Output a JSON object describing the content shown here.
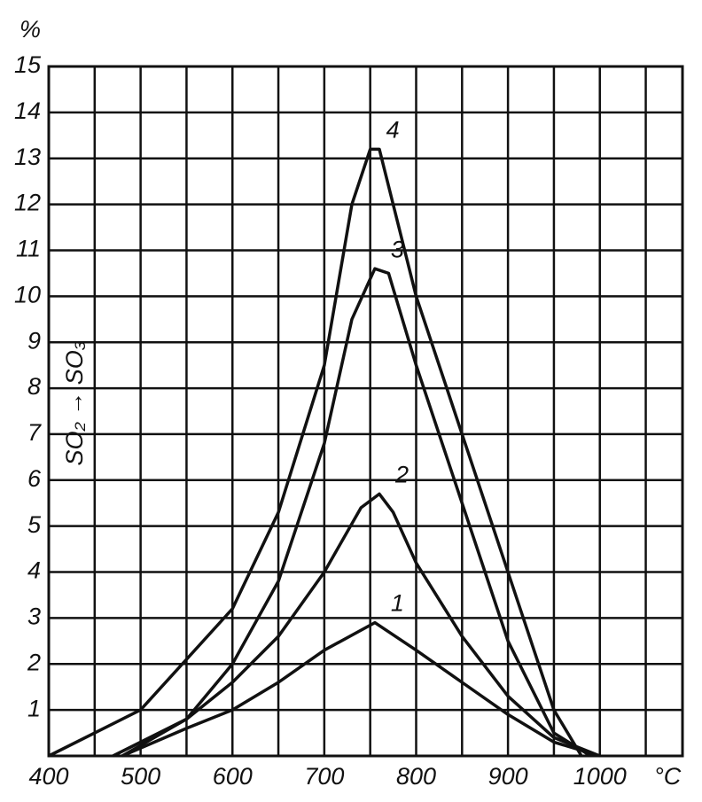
{
  "chart_data": {
    "type": "line",
    "y_unit": "%",
    "x_unit": "°C",
    "ylabel": "SO₂ → SO₃",
    "xlim": [
      400,
      1090
    ],
    "ylim": [
      0,
      15
    ],
    "xticks": [
      400,
      500,
      600,
      700,
      800,
      900,
      1000
    ],
    "xminor": [
      450,
      550,
      650,
      750,
      850,
      950,
      1050
    ],
    "yticks": [
      1,
      2,
      3,
      4,
      5,
      6,
      7,
      8,
      9,
      10,
      11,
      12,
      13,
      14,
      15
    ],
    "grid": true,
    "color": "#111111",
    "series": [
      {
        "name": "1",
        "x": [
          480,
          550,
          600,
          650,
          700,
          755,
          800,
          850,
          900,
          950,
          1000
        ],
        "values": [
          0,
          0.6,
          1,
          1.6,
          2.3,
          2.9,
          2.3,
          1.6,
          0.9,
          0.3,
          0
        ]
      },
      {
        "name": "2",
        "x": [
          480,
          550,
          600,
          650,
          700,
          740,
          760,
          775,
          800,
          850,
          900,
          950,
          1000
        ],
        "values": [
          0,
          0.8,
          1.6,
          2.6,
          4,
          5.4,
          5.7,
          5.3,
          4.2,
          2.6,
          1.3,
          0.4,
          0
        ]
      },
      {
        "name": "3",
        "x": [
          470,
          550,
          600,
          650,
          700,
          730,
          755,
          770,
          800,
          850,
          900,
          950,
          990
        ],
        "values": [
          0,
          0.8,
          2,
          3.8,
          6.8,
          9.5,
          10.6,
          10.5,
          8.5,
          5.5,
          2.5,
          0.5,
          0
        ]
      },
      {
        "name": "4",
        "x": [
          400,
          500,
          600,
          650,
          700,
          730,
          750,
          760,
          800,
          850,
          900,
          950,
          980
        ],
        "values": [
          0,
          1,
          3.2,
          5.3,
          8.5,
          12,
          13.2,
          13.2,
          10,
          7,
          4,
          1,
          0
        ]
      }
    ]
  }
}
